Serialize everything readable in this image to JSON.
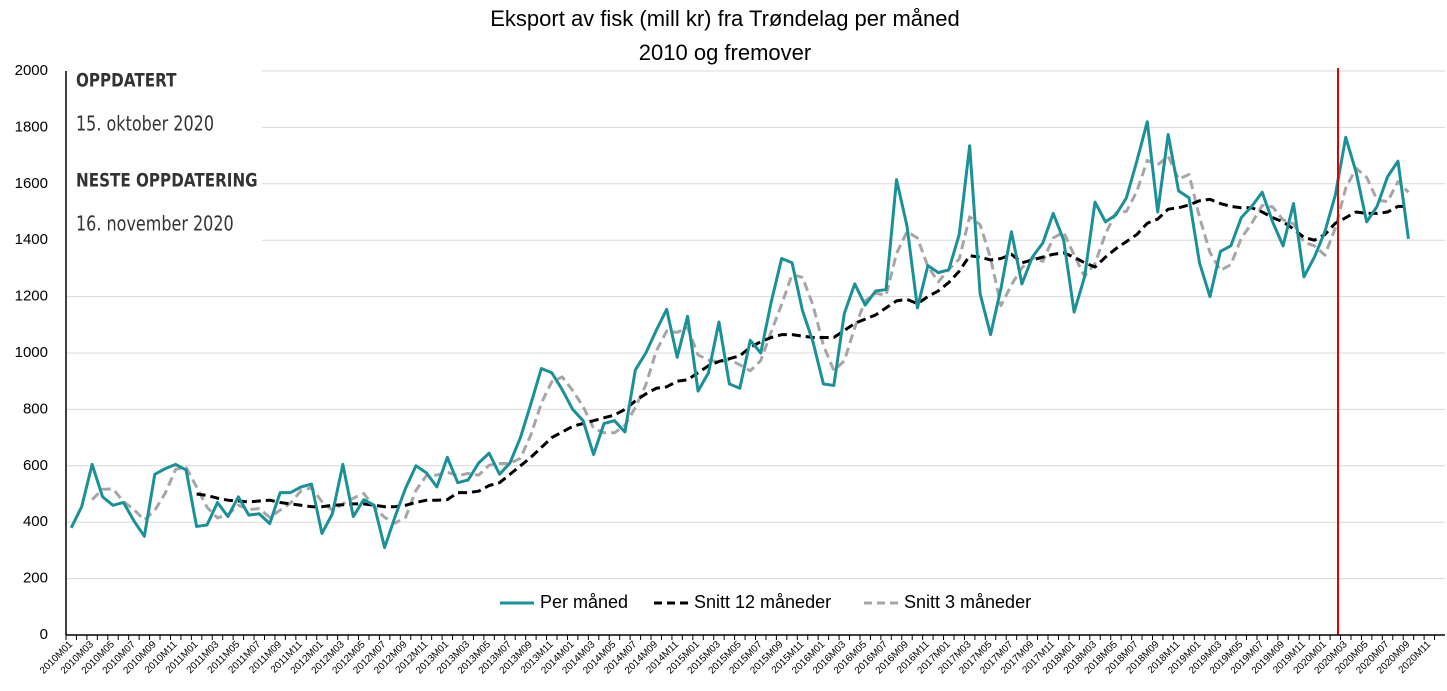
{
  "chart_data": {
    "type": "line",
    "title": "Eksport av fisk (mill kr) fra Trøndelag per måned",
    "subtitle": "2010 og fremover",
    "annotations": [
      "OPPDATERT",
      "15. oktober 2020",
      "NESTE OPPDATERING",
      "16. november 2020"
    ],
    "categories": [
      "2010M01",
      null,
      "2010M03",
      null,
      "2010M05",
      null,
      "2010M07",
      null,
      "2010M09",
      null,
      "2010M11",
      null,
      "2011M01",
      null,
      "2011M03",
      null,
      "2011M05",
      null,
      "2011M07",
      null,
      "2011M09",
      null,
      "2011M11",
      null,
      "2012M01",
      null,
      "2012M03",
      null,
      "2012M05",
      null,
      "2012M07",
      null,
      "2012M09",
      null,
      "2012M11",
      null,
      "2013M01",
      null,
      "2013M03",
      null,
      "2013M05",
      null,
      "2013M07",
      null,
      "2013M09",
      null,
      "2013M11",
      null,
      "2014M01",
      null,
      "2014M03",
      null,
      "2014M05",
      null,
      "2014M07",
      null,
      "2014M09",
      null,
      "2014M11",
      null,
      "2015M01",
      null,
      "2015M03",
      null,
      "2015M05",
      null,
      "2015M07",
      null,
      "2015M09",
      null,
      "2015M11",
      null,
      "2016M01",
      null,
      "2016M03",
      null,
      "2016M05",
      null,
      "2016M07",
      null,
      "2016M09",
      null,
      "2016M11",
      null,
      "2017M01",
      null,
      "2017M03",
      null,
      "2017M05",
      null,
      "2017M07",
      null,
      "2017M09",
      null,
      "2017M11",
      null,
      "2018M01",
      null,
      "2018M03",
      null,
      "2018M05",
      null,
      "2018M07",
      null,
      "2018M09",
      null,
      "2018M11",
      null,
      "2019M01",
      null,
      "2019M03",
      null,
      "2019M05",
      null,
      "2019M07",
      null,
      "2019M09",
      null,
      "2019M11",
      null,
      "2020M01",
      null,
      "2020M03",
      null,
      "2020M05",
      null,
      "2020M07",
      null,
      "2020M09",
      null,
      "2020M11",
      null
    ],
    "series": [
      {
        "name": "Per måned",
        "color": "#1a9196",
        "dashed": false,
        "values": [
          380,
          455,
          605,
          490,
          460,
          470,
          405,
          350,
          570,
          590,
          605,
          585,
          385,
          390,
          470,
          420,
          490,
          425,
          430,
          395,
          505,
          505,
          525,
          535,
          360,
          430,
          605,
          420,
          480,
          460,
          310,
          420,
          520,
          600,
          575,
          525,
          630,
          540,
          550,
          610,
          645,
          570,
          610,
          700,
          820,
          945,
          930,
          870,
          800,
          760,
          640,
          750,
          760,
          720,
          940,
          1000,
          1080,
          1155,
          985,
          1130,
          865,
          930,
          1110,
          890,
          875,
          1045,
          1000,
          1180,
          1335,
          1320,
          1150,
          1040,
          890,
          885,
          1140,
          1245,
          1170,
          1220,
          1225,
          1615,
          1450,
          1160,
          1310,
          1285,
          1295,
          1420,
          1735,
          1210,
          1065,
          1230,
          1430,
          1245,
          1340,
          1390,
          1495,
          1400,
          1145,
          1270,
          1535,
          1465,
          1490,
          1550,
          1680,
          1820,
          1500,
          1775,
          1575,
          1550,
          1320,
          1200,
          1360,
          1380,
          1480,
          1520,
          1570,
          1465,
          1380,
          1530,
          1270,
          1340,
          1430,
          1560,
          1765,
          1640,
          1465,
          1520,
          1625,
          1680,
          1405,
          null,
          null,
          null
        ]
      },
      {
        "name": "Snitt 12 måneder",
        "color": "#000000",
        "dashed": true,
        "values": [
          null,
          null,
          null,
          null,
          null,
          null,
          null,
          null,
          null,
          null,
          null,
          null,
          500,
          495,
          485,
          478,
          475,
          472,
          475,
          478,
          470,
          465,
          460,
          455,
          455,
          460,
          462,
          465,
          465,
          460,
          455,
          455,
          460,
          470,
          478,
          478,
          480,
          505,
          505,
          510,
          530,
          540,
          570,
          600,
          630,
          665,
          700,
          720,
          740,
          750,
          760,
          770,
          780,
          800,
          830,
          855,
          875,
          880,
          900,
          905,
          930,
          955,
          970,
          980,
          990,
          1020,
          1040,
          1055,
          1065,
          1065,
          1060,
          1055,
          1055,
          1055,
          1080,
          1105,
          1120,
          1135,
          1160,
          1185,
          1190,
          1175,
          1200,
          1220,
          1250,
          1290,
          1345,
          1340,
          1330,
          1335,
          1350,
          1320,
          1330,
          1340,
          1350,
          1355,
          1340,
          1320,
          1305,
          1340,
          1370,
          1395,
          1420,
          1460,
          1475,
          1510,
          1515,
          1525,
          1540,
          1545,
          1530,
          1520,
          1515,
          1515,
          1500,
          1480,
          1465,
          1440,
          1410,
          1400,
          1420,
          1460,
          1480,
          1500,
          1495,
          1495,
          1500,
          1520,
          1520,
          null,
          null,
          null
        ]
      },
      {
        "name": "Snitt 3 måneder",
        "color": "#a6a6a6",
        "dashed": true,
        "values": [
          null,
          null,
          480,
          517,
          518,
          473,
          445,
          408,
          442,
          503,
          588,
          593,
          525,
          453,
          415,
          427,
          460,
          445,
          448,
          417,
          443,
          468,
          512,
          522,
          473,
          442,
          465,
          485,
          502,
          453,
          417,
          397,
          417,
          513,
          565,
          567,
          577,
          565,
          573,
          567,
          602,
          608,
          608,
          627,
          710,
          822,
          898,
          915,
          867,
          810,
          733,
          717,
          717,
          743,
          807,
          887,
          1007,
          1078,
          1073,
          1090,
          993,
          975,
          968,
          977,
          958,
          937,
          973,
          1075,
          1172,
          1278,
          1268,
          1170,
          1027,
          938,
          972,
          1090,
          1185,
          1212,
          1205,
          1353,
          1430,
          1408,
          1307,
          1252,
          1297,
          1333,
          1483,
          1455,
          1337,
          1168,
          1242,
          1302,
          1338,
          1325,
          1408,
          1428,
          1347,
          1272,
          1317,
          1423,
          1497,
          1502,
          1573,
          1683,
          1667,
          1698,
          1617,
          1633,
          1482,
          1357,
          1293,
          1313,
          1407,
          1460,
          1523,
          1518,
          1472,
          1458,
          1393,
          1380,
          1347,
          1443,
          1585,
          1655,
          1623,
          1542,
          1537,
          1608,
          1570,
          null,
          null,
          null
        ]
      }
    ],
    "ylim": [
      0,
      2000
    ],
    "yticks": [
      0,
      200,
      400,
      600,
      800,
      1000,
      1200,
      1400,
      1600,
      1800,
      2000
    ],
    "grid": true,
    "legend": "bottom"
  }
}
